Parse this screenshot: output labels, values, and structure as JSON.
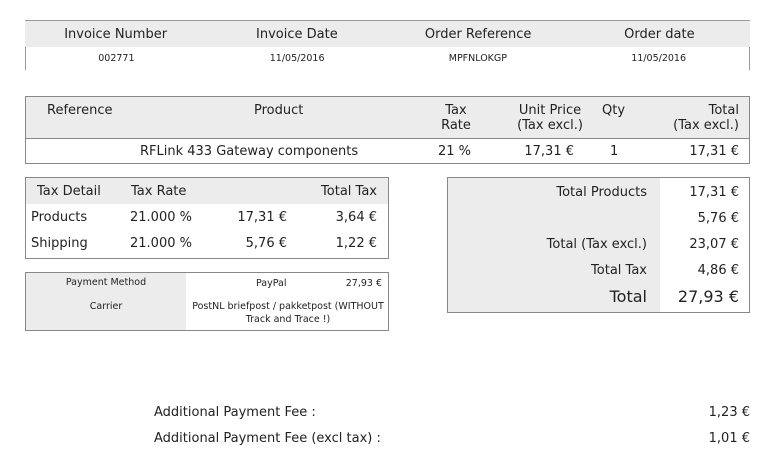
{
  "header": {
    "columns": [
      "Invoice Number",
      "Invoice Date",
      "Order Reference",
      "Order date"
    ],
    "values": [
      "002771",
      "11/05/2016",
      "MPFNLOKGP",
      "11/05/2016"
    ]
  },
  "products": {
    "col_reference": "Reference",
    "col_product": "Product",
    "col_tax_line1": "Tax",
    "col_tax_line2": "Rate",
    "col_unit_line1": "Unit Price",
    "col_unit_line2": "(Tax excl.)",
    "col_qty": "Qty",
    "col_total_line1": "Total",
    "col_total_line2": "(Tax excl.)",
    "row": {
      "product": "RFLink 433 Gateway components",
      "tax_rate": "21 %",
      "unit_price": "17,31 €",
      "qty": "1",
      "total": "17,31 €"
    }
  },
  "tax_detail": {
    "col_detail": "Tax Detail",
    "col_rate": "Tax Rate",
    "col_total": "Total Tax",
    "rows": [
      {
        "detail": "Products",
        "rate": "21.000 %",
        "base": "17,31 €",
        "tax": "3,64 €"
      },
      {
        "detail": "Shipping",
        "rate": "21.000 %",
        "base": "5,76 €",
        "tax": "1,22 €"
      }
    ]
  },
  "payment": {
    "method_label": "Payment Method",
    "method_value": "PayPal",
    "method_amount": "27,93 €",
    "carrier_label": "Carrier",
    "carrier_value_line1": "PostNL briefpost / pakketpost (WITHOUT",
    "carrier_value_line2": "Track and Trace !)"
  },
  "totals": {
    "products_label": "Total Products",
    "products_value": "17,31 €",
    "shipping_value": "5,76 €",
    "tax_excl_label": "Total (Tax excl.)",
    "tax_excl_value": "23,07 €",
    "total_tax_label": "Total Tax",
    "total_tax_value": "4,86 €",
    "total_label": "Total",
    "total_value": "27,93 €"
  },
  "fees": {
    "fee_label": "Additional Payment Fee :",
    "fee_value": "1,23 €",
    "fee_excl_label": "Additional Payment Fee (excl tax) :",
    "fee_excl_value": "1,01 €"
  }
}
